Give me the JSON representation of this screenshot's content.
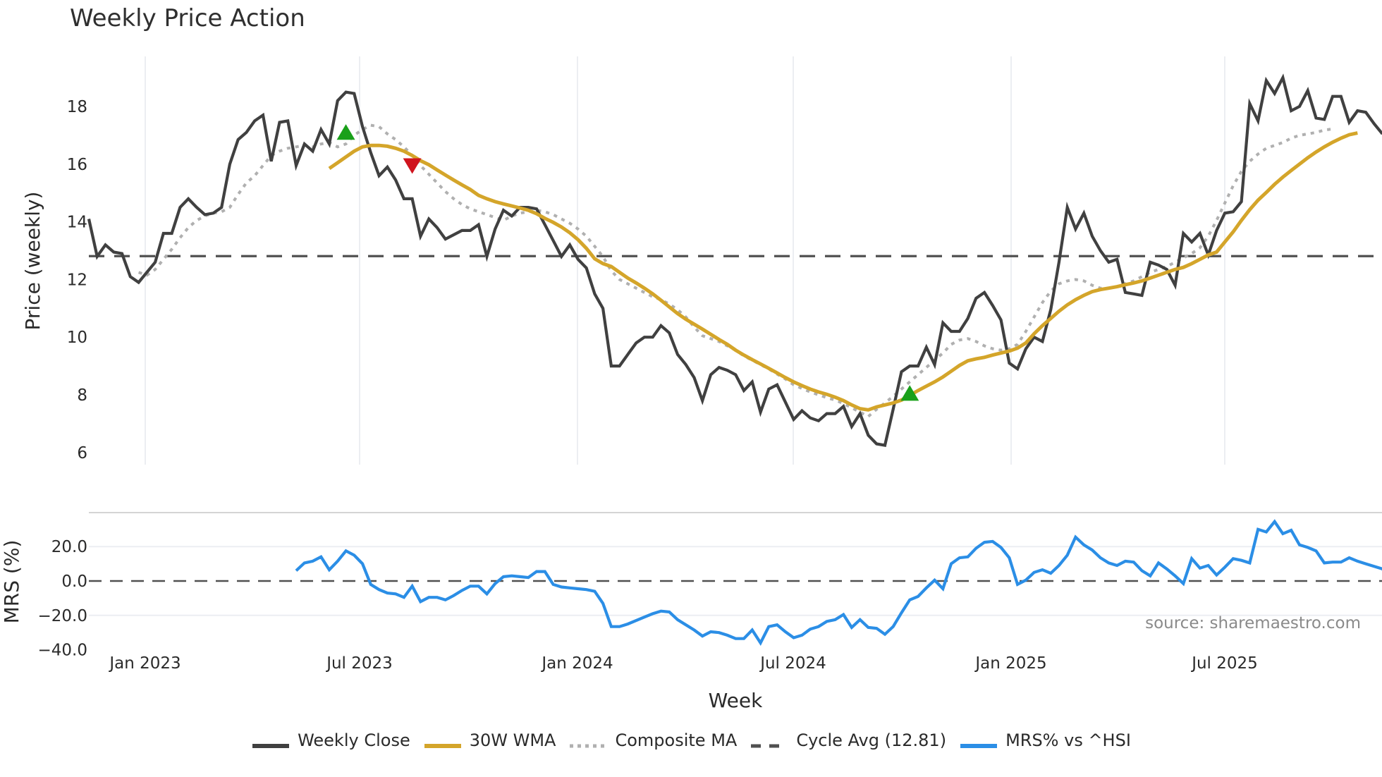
{
  "title": "Weekly Price Action",
  "source": "source: sharemaestro.com",
  "legend": [
    {
      "label": "Weekly Close",
      "color": "#404040",
      "style": "solid"
    },
    {
      "label": "30W WMA",
      "color": "#d4a52a",
      "style": "solid"
    },
    {
      "label": "Composite MA",
      "color": "#b0b0b0",
      "style": "dotted"
    },
    {
      "label": "Cycle Avg (12.81)",
      "color": "#505050",
      "style": "dashed"
    },
    {
      "label": "MRS% vs ^HSI",
      "color": "#2b8ee6",
      "style": "solid"
    }
  ],
  "chart_data": [
    {
      "type": "line",
      "title": "Weekly Price Action",
      "xlabel": "Week",
      "ylabel": "Price (weekly)",
      "ylim": [
        5.6,
        20.2
      ],
      "yticks": [
        6,
        8,
        10,
        12,
        14,
        16,
        18
      ],
      "xticks": [
        "Jan 2023",
        "Jul 2023",
        "Jan 2024",
        "Jul 2024",
        "Jan 2025",
        "Jul 2025"
      ],
      "grid": "vertical",
      "legend_position": "bottom",
      "x_start": "2022-11-14",
      "x_step": "1 week",
      "cycle_avg": 12.81,
      "series": [
        {
          "name": "Weekly Close",
          "values": [
            14.1,
            12.8,
            13.2,
            12.95,
            12.9,
            12.1,
            11.9,
            12.25,
            12.6,
            13.6,
            13.6,
            14.5,
            14.8,
            14.5,
            14.25,
            14.3,
            14.5,
            16.0,
            16.85,
            17.1,
            17.5,
            17.7,
            16.1,
            17.45,
            17.5,
            15.95,
            16.7,
            16.45,
            17.2,
            16.7,
            18.2,
            18.5,
            18.45,
            17.3,
            16.4,
            15.6,
            15.9,
            15.45,
            14.8,
            14.8,
            13.5,
            14.1,
            13.8,
            13.4,
            13.55,
            13.7,
            13.7,
            13.9,
            12.8,
            13.75,
            14.4,
            14.2,
            14.5,
            14.5,
            14.45,
            13.9,
            13.35,
            12.8,
            13.2,
            12.7,
            12.4,
            11.5,
            11.0,
            9.0,
            9.0,
            9.4,
            9.8,
            10.0,
            10.0,
            10.4,
            10.15,
            9.4,
            9.05,
            8.6,
            7.8,
            8.7,
            8.95,
            8.85,
            8.7,
            8.15,
            8.45,
            7.4,
            8.2,
            8.35,
            7.75,
            7.15,
            7.45,
            7.2,
            7.1,
            7.35,
            7.35,
            7.6,
            6.9,
            7.35,
            6.6,
            6.3,
            6.25,
            7.5,
            8.8,
            9.0,
            9.0,
            9.65,
            9.05,
            10.5,
            10.2,
            10.2,
            10.65,
            11.35,
            11.55,
            11.1,
            10.6,
            9.1,
            8.9,
            9.6,
            10.0,
            9.85,
            10.95,
            12.6,
            14.5,
            13.75,
            14.3,
            13.5,
            13.0,
            12.6,
            12.7,
            11.55,
            11.5,
            11.45,
            12.6,
            12.5,
            12.35,
            11.8,
            13.6,
            13.3,
            13.6,
            12.85,
            13.7,
            14.3,
            14.35,
            14.7,
            18.1,
            17.5,
            18.9,
            18.45,
            19.0,
            17.85,
            18.0,
            18.55,
            17.6,
            17.55,
            18.35,
            18.35,
            17.45,
            17.85,
            17.8,
            17.4,
            17.05
          ]
        },
        {
          "name": "30W WMA",
          "start_index": 29,
          "values": [
            15.85,
            16.05,
            16.25,
            16.45,
            16.6,
            16.65,
            16.65,
            16.62,
            16.55,
            16.45,
            16.3,
            16.12,
            15.98,
            15.8,
            15.62,
            15.45,
            15.28,
            15.12,
            14.92,
            14.8,
            14.7,
            14.62,
            14.55,
            14.48,
            14.4,
            14.28,
            14.12,
            13.98,
            13.82,
            13.62,
            13.38,
            13.08,
            12.72,
            12.55,
            12.45,
            12.25,
            12.05,
            11.88,
            11.7,
            11.5,
            11.28,
            11.05,
            10.82,
            10.62,
            10.45,
            10.28,
            10.1,
            9.92,
            9.75,
            9.55,
            9.38,
            9.22,
            9.07,
            8.92,
            8.76,
            8.6,
            8.45,
            8.32,
            8.2,
            8.1,
            8.02,
            7.92,
            7.8,
            7.65,
            7.52,
            7.48,
            7.58,
            7.65,
            7.72,
            7.82,
            7.98,
            8.15,
            8.3,
            8.45,
            8.62,
            8.82,
            9.02,
            9.18,
            9.25,
            9.3,
            9.38,
            9.45,
            9.52,
            9.62,
            9.8,
            10.12,
            10.4,
            10.65,
            10.9,
            11.12,
            11.3,
            11.45,
            11.58,
            11.65,
            11.7,
            11.75,
            11.82,
            11.88,
            11.95,
            12.05,
            12.15,
            12.25,
            12.35,
            12.42,
            12.55,
            12.7,
            12.85,
            12.95,
            13.3,
            13.65,
            14.05,
            14.42,
            14.75,
            15.02,
            15.3,
            15.55,
            15.78,
            16.0,
            16.22,
            16.42,
            16.6,
            16.76,
            16.9,
            17.02,
            17.08
          ]
        },
        {
          "name": "Composite MA",
          "start_index": 6,
          "values": [
            12.25,
            12.15,
            12.35,
            12.7,
            13.05,
            13.45,
            13.8,
            14.05,
            14.2,
            14.3,
            14.35,
            14.5,
            14.95,
            15.35,
            15.6,
            15.95,
            16.3,
            16.45,
            16.55,
            16.6,
            16.65,
            16.6,
            16.7,
            16.75,
            16.6,
            16.7,
            17.0,
            17.2,
            17.35,
            17.3,
            17.05,
            16.85,
            16.6,
            16.3,
            15.95,
            15.65,
            15.35,
            15.05,
            14.8,
            14.6,
            14.45,
            14.35,
            14.25,
            14.15,
            14.05,
            14.2,
            14.3,
            14.35,
            14.4,
            14.35,
            14.25,
            14.1,
            13.95,
            13.75,
            13.5,
            13.15,
            12.8,
            12.3,
            12.0,
            11.85,
            11.7,
            11.55,
            11.4,
            11.3,
            11.15,
            10.95,
            10.7,
            10.35,
            10.05,
            9.95,
            9.85,
            9.7,
            9.55,
            9.35,
            9.2,
            9.05,
            8.9,
            8.72,
            8.55,
            8.35,
            8.22,
            8.1,
            8.0,
            7.9,
            7.82,
            7.7,
            7.55,
            7.4,
            7.25,
            7.5,
            7.72,
            7.95,
            8.2,
            8.45,
            8.7,
            8.95,
            9.2,
            9.45,
            9.75,
            9.9,
            9.95,
            9.85,
            9.7,
            9.6,
            9.55,
            9.6,
            9.75,
            10.2,
            10.7,
            11.2,
            11.6,
            11.85,
            11.95,
            12.0,
            11.95,
            11.8,
            11.7,
            11.7,
            11.75,
            11.85,
            11.95,
            12.1,
            12.25,
            12.35,
            12.45,
            12.6,
            12.75,
            12.9,
            13.1,
            13.5,
            14.05,
            14.65,
            15.25,
            15.75,
            16.1,
            16.35,
            16.55,
            16.65,
            16.75,
            16.9,
            17.0,
            17.05,
            17.1,
            17.18,
            17.22
          ]
        },
        {
          "name": "Cycle Avg (12.81)",
          "values": [
            12.81
          ]
        }
      ],
      "markers": [
        {
          "type": "buy",
          "shape": "triangle-up",
          "color": "#1aa01a",
          "index": 31,
          "value": 17.1
        },
        {
          "type": "sell",
          "shape": "triangle-down",
          "color": "#d0141e",
          "index": 39,
          "value": 15.95
        },
        {
          "type": "buy",
          "shape": "triangle-up",
          "color": "#1aa01a",
          "index": 99,
          "value": 8.05
        }
      ]
    },
    {
      "type": "line",
      "title": "",
      "xlabel": "Week",
      "ylabel": "MRS (%)",
      "ylim": [
        -42,
        30
      ],
      "yticks": [
        20.0,
        0.0,
        -20.0,
        -40.0
      ],
      "ytick_labels": [
        "20.0",
        "0.0",
        "−20.0",
        "−40.0"
      ],
      "zero_line": 0.0,
      "series": [
        {
          "name": "MRS% vs ^HSI",
          "start_index": 25,
          "values": [
            6,
            10.5,
            11.5,
            14,
            6.5,
            11.5,
            17.5,
            15,
            10,
            -2,
            -5,
            -7,
            -7.5,
            -9.5,
            -3,
            -12,
            -9.5,
            -9.5,
            -11,
            -8.5,
            -5.5,
            -3,
            -3,
            -7.5,
            -1.5,
            2.5,
            3,
            2.5,
            2,
            5.5,
            5.5,
            -2,
            -3.5,
            -4,
            -4.5,
            -5,
            -6,
            -13,
            -26.5,
            -26.5,
            -25,
            -23,
            -21,
            -19,
            -17.5,
            -18,
            -22.5,
            -25.5,
            -28.5,
            -32,
            -29.5,
            -30,
            -31.5,
            -33.5,
            -33.5,
            -28.5,
            -36,
            -26.5,
            -25.5,
            -29.5,
            -33,
            -31.5,
            -28,
            -26.5,
            -23.5,
            -22.5,
            -19.5,
            -27,
            -22.5,
            -27,
            -27.5,
            -31,
            -26.5,
            -18.5,
            -11,
            -9,
            -4,
            0.5,
            -4.5,
            10,
            13.5,
            14,
            19,
            22.5,
            23,
            19.5,
            13.5,
            -2,
            0.5,
            5,
            6.5,
            4.5,
            9,
            15,
            25.5,
            21,
            18,
            13.5,
            10.5,
            9,
            11.5,
            11,
            6,
            3,
            10.5,
            7,
            3,
            -1.5,
            13,
            7.5,
            9,
            3.5,
            8,
            13,
            12,
            10.5,
            30,
            28.5,
            34.5,
            27.5,
            29.5,
            21,
            19.5,
            17.5,
            10.5,
            11,
            11,
            13.5,
            11.5,
            10,
            8.5,
            7,
            1.5
          ]
        }
      ],
      "annotation": "source: sharemaestro.com"
    }
  ]
}
